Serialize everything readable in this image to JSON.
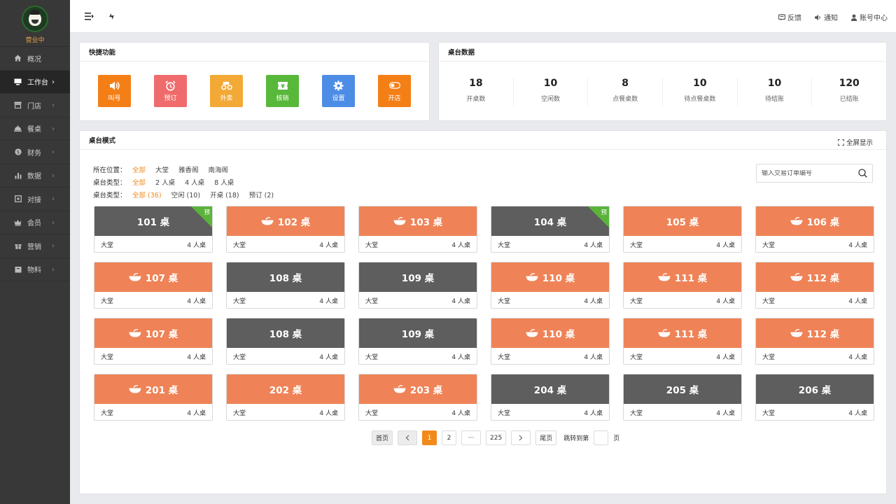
{
  "sidebar": {
    "status": "营业中",
    "items": [
      {
        "label": "概况",
        "icon": "home-icon",
        "chevron": false
      },
      {
        "label": "工作台",
        "icon": "monitor-icon",
        "chevron": true,
        "active": true
      },
      {
        "label": "门店",
        "icon": "store-icon",
        "chevron": true
      },
      {
        "label": "餐桌",
        "icon": "dish-icon",
        "chevron": true
      },
      {
        "label": "财务",
        "icon": "money-icon",
        "chevron": true
      },
      {
        "label": "数据",
        "icon": "chart-icon",
        "chevron": true
      },
      {
        "label": "对接",
        "icon": "link-icon",
        "chevron": true
      },
      {
        "label": "会员",
        "icon": "crown-icon",
        "chevron": true
      },
      {
        "label": "营销",
        "icon": "gift-icon",
        "chevron": true
      },
      {
        "label": "物料",
        "icon": "box-icon",
        "chevron": true
      }
    ]
  },
  "topbar": {
    "feedback": "反馈",
    "notify": "通知",
    "account": "账号中心"
  },
  "quick": {
    "title": "快捷功能",
    "buttons": [
      {
        "label": "叫号",
        "color": "#f57f17",
        "icon": "speaker-icon"
      },
      {
        "label": "预订",
        "color": "#f06c6c",
        "icon": "alarm-clock-icon"
      },
      {
        "label": "外卖",
        "color": "#f3a936",
        "icon": "scooter-icon"
      },
      {
        "label": "核销",
        "color": "#58b83a",
        "icon": "ticket-icon"
      },
      {
        "label": "设置",
        "color": "#4e8de6",
        "icon": "gear-icon"
      },
      {
        "label": "开店",
        "color": "#f57f17",
        "icon": "toggle-icon"
      }
    ]
  },
  "stats": {
    "title": "桌台数据",
    "items": [
      {
        "value": "18",
        "label": "开桌数"
      },
      {
        "value": "10",
        "label": "空闲数"
      },
      {
        "value": "8",
        "label": "点餐桌数"
      },
      {
        "value": "10",
        "label": "待点餐桌数"
      },
      {
        "value": "10",
        "label": "待结账"
      },
      {
        "value": "120",
        "label": "已结账"
      }
    ]
  },
  "tables": {
    "title": "桌台模式",
    "fullscreen": "全屏显示",
    "filters": [
      {
        "label": "所在位置：",
        "options": [
          "全部",
          "大堂",
          "雅香阁",
          "南海阁"
        ],
        "selected": 0
      },
      {
        "label": "桌台类型：",
        "options": [
          "全部",
          "2 人桌",
          "4 人桌",
          "8 人桌"
        ],
        "selected": 0
      },
      {
        "label": "桌台类型：",
        "options": [
          "全部 (36)",
          "空闲 (10)",
          "开桌 (18)",
          "预订 (2)"
        ],
        "selected": 0
      }
    ],
    "search_placeholder": "输入交易订单编号",
    "cards": [
      {
        "name": "101 桌",
        "status": "gray",
        "bowl": false,
        "reserved": true,
        "area": "大堂",
        "seats": "4 人桌"
      },
      {
        "name": "102 桌",
        "status": "orange",
        "bowl": true,
        "reserved": false,
        "area": "大堂",
        "seats": "4 人桌"
      },
      {
        "name": "103 桌",
        "status": "orange",
        "bowl": true,
        "reserved": false,
        "area": "大堂",
        "seats": "4 人桌"
      },
      {
        "name": "104 桌",
        "status": "gray",
        "bowl": false,
        "reserved": true,
        "area": "大堂",
        "seats": "4 人桌"
      },
      {
        "name": "105 桌",
        "status": "orange",
        "bowl": false,
        "reserved": false,
        "area": "大堂",
        "seats": "4 人桌"
      },
      {
        "name": "106 桌",
        "status": "orange",
        "bowl": true,
        "reserved": false,
        "area": "大堂",
        "seats": "4 人桌"
      },
      {
        "name": "107 桌",
        "status": "orange",
        "bowl": true,
        "reserved": false,
        "area": "大堂",
        "seats": "4 人桌"
      },
      {
        "name": "108 桌",
        "status": "gray",
        "bowl": false,
        "reserved": false,
        "area": "大堂",
        "seats": "4 人桌"
      },
      {
        "name": "109 桌",
        "status": "gray",
        "bowl": false,
        "reserved": false,
        "area": "大堂",
        "seats": "4 人桌"
      },
      {
        "name": "110 桌",
        "status": "orange",
        "bowl": true,
        "reserved": false,
        "area": "大堂",
        "seats": "4 人桌"
      },
      {
        "name": "111 桌",
        "status": "orange",
        "bowl": true,
        "reserved": false,
        "area": "大堂",
        "seats": "4 人桌"
      },
      {
        "name": "112 桌",
        "status": "orange",
        "bowl": true,
        "reserved": false,
        "area": "大堂",
        "seats": "4 人桌"
      },
      {
        "name": "107 桌",
        "status": "orange",
        "bowl": true,
        "reserved": false,
        "area": "大堂",
        "seats": "4 人桌"
      },
      {
        "name": "108 桌",
        "status": "gray",
        "bowl": false,
        "reserved": false,
        "area": "大堂",
        "seats": "4 人桌"
      },
      {
        "name": "109 桌",
        "status": "gray",
        "bowl": false,
        "reserved": false,
        "area": "大堂",
        "seats": "4 人桌"
      },
      {
        "name": "110 桌",
        "status": "orange",
        "bowl": true,
        "reserved": false,
        "area": "大堂",
        "seats": "4 人桌"
      },
      {
        "name": "111 桌",
        "status": "orange",
        "bowl": true,
        "reserved": false,
        "area": "大堂",
        "seats": "4 人桌"
      },
      {
        "name": "112 桌",
        "status": "orange",
        "bowl": true,
        "reserved": false,
        "area": "大堂",
        "seats": "4 人桌"
      },
      {
        "name": "201 桌",
        "status": "orange",
        "bowl": true,
        "reserved": false,
        "area": "大堂",
        "seats": "4 人桌"
      },
      {
        "name": "202 桌",
        "status": "orange",
        "bowl": false,
        "reserved": false,
        "area": "大堂",
        "seats": "4 人桌"
      },
      {
        "name": "203 桌",
        "status": "orange",
        "bowl": true,
        "reserved": false,
        "area": "大堂",
        "seats": "4 人桌"
      },
      {
        "name": "204 桌",
        "status": "gray",
        "bowl": false,
        "reserved": false,
        "area": "大堂",
        "seats": "4 人桌"
      },
      {
        "name": "205 桌",
        "status": "gray",
        "bowl": false,
        "reserved": false,
        "area": "大堂",
        "seats": "4 人桌"
      },
      {
        "name": "206 桌",
        "status": "gray",
        "bowl": false,
        "reserved": false,
        "area": "大堂",
        "seats": "4 人桌"
      }
    ],
    "reserved_tag": "预"
  },
  "pager": {
    "first": "首页",
    "pages": [
      "1",
      "2",
      "···",
      "225"
    ],
    "current": "1",
    "last": "尾页",
    "jump_prefix": "跳转到第",
    "jump_suffix": "页"
  },
  "colors": {
    "accent": "#f28a1b",
    "table_busy": "#ef8357",
    "table_free": "#5e5e5e",
    "reserved": "#5ab43a"
  }
}
